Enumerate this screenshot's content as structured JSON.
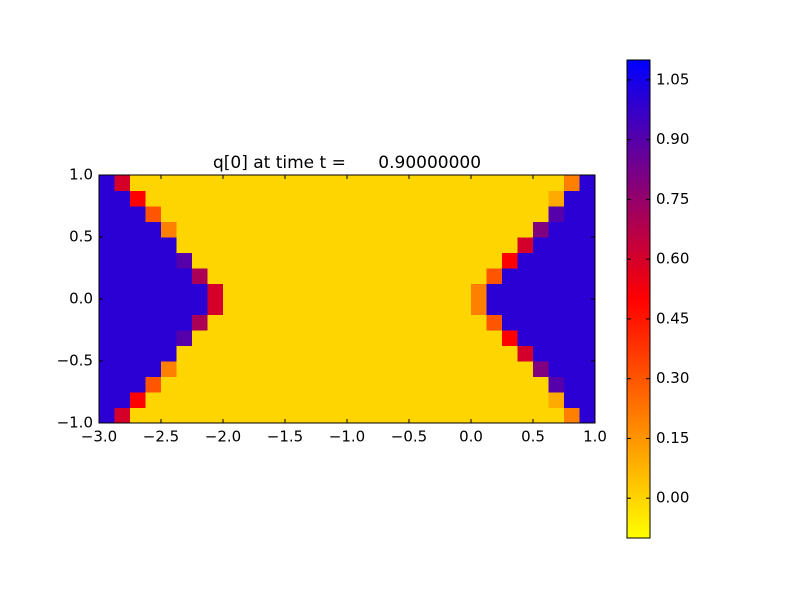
{
  "chart_data": {
    "type": "heatmap",
    "title": "q[0] at time t =      0.90000000",
    "xlim": [
      -3,
      1
    ],
    "ylim": [
      -1,
      1
    ],
    "xticks": [
      {
        "value": -3,
        "label": "−3.0"
      },
      {
        "value": -2.5,
        "label": "−2.5"
      },
      {
        "value": -2,
        "label": "−2.0"
      },
      {
        "value": -1.5,
        "label": "−1.5"
      },
      {
        "value": -1,
        "label": "−1.0"
      },
      {
        "value": -0.5,
        "label": "−0.5"
      },
      {
        "value": 0,
        "label": "0.0"
      },
      {
        "value": 0.5,
        "label": "0.5"
      },
      {
        "value": 1,
        "label": "1.0"
      }
    ],
    "yticks": [
      {
        "value": -1,
        "label": "−1.0"
      },
      {
        "value": -0.5,
        "label": "−0.5"
      },
      {
        "value": 0,
        "label": "0.0"
      },
      {
        "value": 0.5,
        "label": "0.5"
      },
      {
        "value": 1,
        "label": "1.0"
      }
    ],
    "colormap": [
      "#ffff00",
      "#ff0000",
      "#0000ff"
    ],
    "clim": [
      -0.1,
      1.1
    ],
    "cticks": [
      {
        "value": 0,
        "label": "0.00"
      },
      {
        "value": 0.15,
        "label": "0.15"
      },
      {
        "value": 0.3,
        "label": "0.30"
      },
      {
        "value": 0.45,
        "label": "0.45"
      },
      {
        "value": 0.6,
        "label": "0.60"
      },
      {
        "value": 0.75,
        "label": "0.75"
      },
      {
        "value": 0.9,
        "label": "0.90"
      },
      {
        "value": 1.05,
        "label": "1.05"
      }
    ],
    "z": [
      [
        1,
        0.6,
        0,
        0,
        0,
        0,
        0,
        0,
        0,
        0,
        0,
        0,
        0,
        0,
        0,
        0,
        0,
        0,
        0,
        0,
        0,
        0,
        0,
        0,
        0,
        0,
        0,
        0,
        0,
        0,
        0.2,
        1
      ],
      [
        1,
        1,
        0.5,
        0,
        0,
        0,
        0,
        0,
        0,
        0,
        0,
        0,
        0,
        0,
        0,
        0,
        0,
        0,
        0,
        0,
        0,
        0,
        0,
        0,
        0,
        0,
        0,
        0,
        0,
        0.1,
        1,
        1
      ],
      [
        1,
        1,
        1,
        0.3,
        0,
        0,
        0,
        0,
        0,
        0,
        0,
        0,
        0,
        0,
        0,
        0,
        0,
        0,
        0,
        0,
        0,
        0,
        0,
        0,
        0,
        0,
        0,
        0,
        0,
        0.9,
        1,
        1
      ],
      [
        1,
        1,
        1,
        1,
        0.2,
        0,
        0,
        0,
        0,
        0,
        0,
        0,
        0,
        0,
        0,
        0,
        0,
        0,
        0,
        0,
        0,
        0,
        0,
        0,
        0,
        0,
        0,
        0,
        0.8,
        1,
        1,
        1
      ],
      [
        1,
        1,
        1,
        1,
        1,
        0,
        0,
        0,
        0,
        0,
        0,
        0,
        0,
        0,
        0,
        0,
        0,
        0,
        0,
        0,
        0,
        0,
        0,
        0,
        0,
        0,
        0,
        0.6,
        1,
        1,
        1,
        1
      ],
      [
        1,
        1,
        1,
        1,
        1,
        0.9,
        0,
        0,
        0,
        0,
        0,
        0,
        0,
        0,
        0,
        0,
        0,
        0,
        0,
        0,
        0,
        0,
        0,
        0,
        0,
        0,
        0.5,
        1,
        1,
        1,
        1,
        1
      ],
      [
        1,
        1,
        1,
        1,
        1,
        1,
        0.7,
        0,
        0,
        0,
        0,
        0,
        0,
        0,
        0,
        0,
        0,
        0,
        0,
        0,
        0,
        0,
        0,
        0,
        0,
        0.3,
        1,
        1,
        1,
        1,
        1,
        1
      ],
      [
        1,
        1,
        1,
        1,
        1,
        1,
        1,
        0.6,
        0,
        0,
        0,
        0,
        0,
        0,
        0,
        0,
        0,
        0,
        0,
        0,
        0,
        0,
        0,
        0,
        0.2,
        1,
        1,
        1,
        1,
        1,
        1,
        1
      ],
      [
        1,
        1,
        1,
        1,
        1,
        1,
        1,
        0.6,
        0,
        0,
        0,
        0,
        0,
        0,
        0,
        0,
        0,
        0,
        0,
        0,
        0,
        0,
        0,
        0,
        0.2,
        1,
        1,
        1,
        1,
        1,
        1,
        1
      ],
      [
        1,
        1,
        1,
        1,
        1,
        1,
        0.7,
        0,
        0,
        0,
        0,
        0,
        0,
        0,
        0,
        0,
        0,
        0,
        0,
        0,
        0,
        0,
        0,
        0,
        0,
        0.3,
        1,
        1,
        1,
        1,
        1,
        1
      ],
      [
        1,
        1,
        1,
        1,
        1,
        0.9,
        0,
        0,
        0,
        0,
        0,
        0,
        0,
        0,
        0,
        0,
        0,
        0,
        0,
        0,
        0,
        0,
        0,
        0,
        0,
        0,
        0.5,
        1,
        1,
        1,
        1,
        1
      ],
      [
        1,
        1,
        1,
        1,
        1,
        0,
        0,
        0,
        0,
        0,
        0,
        0,
        0,
        0,
        0,
        0,
        0,
        0,
        0,
        0,
        0,
        0,
        0,
        0,
        0,
        0,
        0,
        0.6,
        1,
        1,
        1,
        1
      ],
      [
        1,
        1,
        1,
        1,
        0.2,
        0,
        0,
        0,
        0,
        0,
        0,
        0,
        0,
        0,
        0,
        0,
        0,
        0,
        0,
        0,
        0,
        0,
        0,
        0,
        0,
        0,
        0,
        0,
        0.8,
        1,
        1,
        1
      ],
      [
        1,
        1,
        1,
        0.3,
        0,
        0,
        0,
        0,
        0,
        0,
        0,
        0,
        0,
        0,
        0,
        0,
        0,
        0,
        0,
        0,
        0,
        0,
        0,
        0,
        0,
        0,
        0,
        0,
        0,
        0.9,
        1,
        1
      ],
      [
        1,
        1,
        0.5,
        0,
        0,
        0,
        0,
        0,
        0,
        0,
        0,
        0,
        0,
        0,
        0,
        0,
        0,
        0,
        0,
        0,
        0,
        0,
        0,
        0,
        0,
        0,
        0,
        0,
        0,
        0.1,
        1,
        1
      ],
      [
        1,
        0.6,
        0,
        0,
        0,
        0,
        0,
        0,
        0,
        0,
        0,
        0,
        0,
        0,
        0,
        0,
        0,
        0,
        0,
        0,
        0,
        0,
        0,
        0,
        0,
        0,
        0,
        0,
        0,
        0,
        0.2,
        1
      ]
    ]
  }
}
